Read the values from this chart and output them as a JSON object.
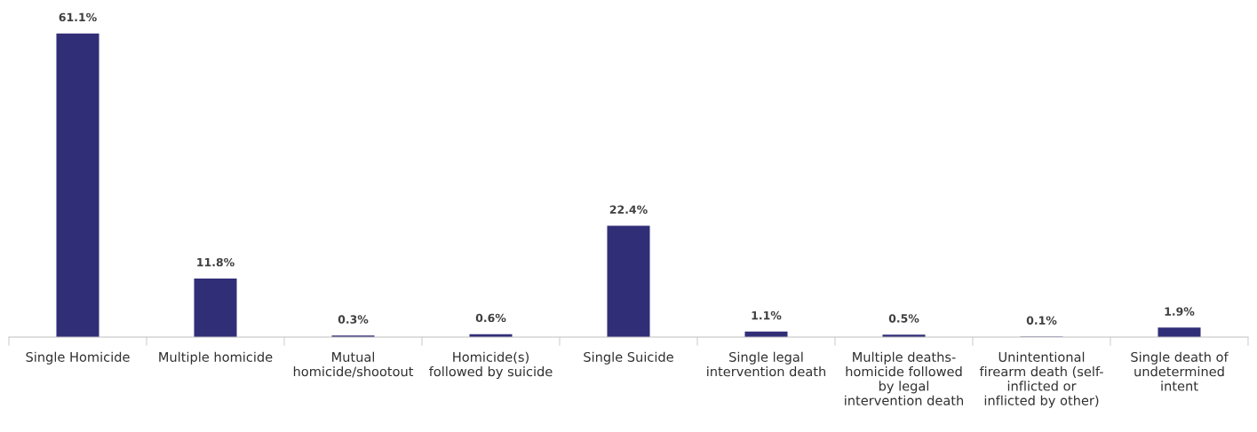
{
  "chart_data": {
    "type": "bar",
    "categories": [
      "Single Homicide",
      "Multiple homicide",
      "Mutual\nhomicide/shootout",
      "Homicide(s)\nfollowed by suicide",
      "Single Suicide",
      "Single legal\nintervention death",
      "Multiple deaths-\nhomicide followed\nby legal\nintervention death",
      "Unintentional\nfirearm death (self-\ninflicted or\ninflicted by other)",
      "Single death of\nundetermined\nintent"
    ],
    "values": [
      61.1,
      11.8,
      0.3,
      0.6,
      22.4,
      1.1,
      0.5,
      0.1,
      1.9
    ],
    "value_labels": [
      "61.1%",
      "11.8%",
      "0.3%",
      "0.6%",
      "22.4%",
      "1.1%",
      "0.5%",
      "0.1%",
      "1.9%"
    ],
    "color": "#312e78",
    "grid": false,
    "legend": false
  }
}
